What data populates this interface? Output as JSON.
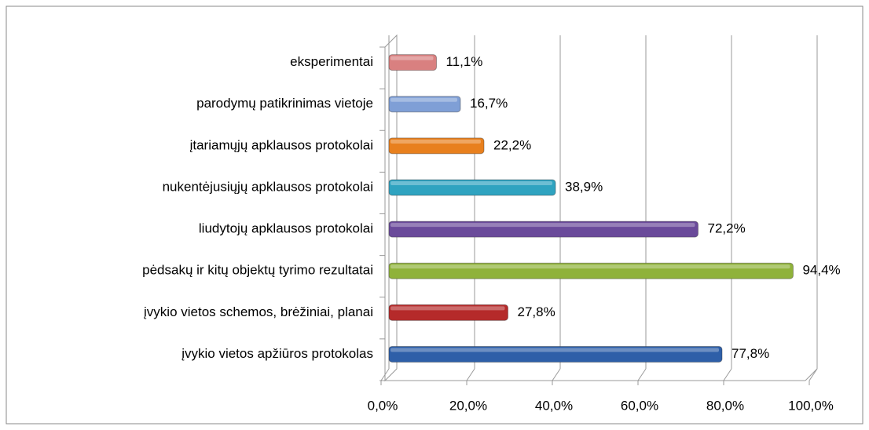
{
  "chart_data": {
    "type": "bar",
    "orientation": "horizontal",
    "categories": [
      "įvykio vietos apžiūros protokolas",
      "įvykio vietos schemos, brėžiniai, planai",
      "pėdsakų ir kitų objektų tyrimo rezultatai",
      "liudytojų apklausos protokolai",
      "nukentėjusiųjų apklausos protokolai",
      "įtariamųjų apklausos protokolai",
      "parodymų patikrinimas vietoje",
      "eksperimentai"
    ],
    "values": [
      77.8,
      27.8,
      94.4,
      72.2,
      38.9,
      22.2,
      16.7,
      11.1
    ],
    "value_labels": [
      "77,8%",
      "27,8%",
      "94,4%",
      "72,2%",
      "38,9%",
      "22,2%",
      "16,7%",
      "11,1%"
    ],
    "colors": [
      "#2e5fa8",
      "#b52a2a",
      "#8fb23a",
      "#6a4a9a",
      "#2fa3c0",
      "#e8801e",
      "#7f9fd6",
      "#d98080"
    ],
    "xlim": [
      0,
      100
    ],
    "xticks": [
      {
        "value": 0,
        "label": "0,0%"
      },
      {
        "value": 20,
        "label": "20,0%"
      },
      {
        "value": 40,
        "label": "40,0%"
      },
      {
        "value": 60,
        "label": "60,0%"
      },
      {
        "value": 80,
        "label": "80,0%"
      },
      {
        "value": 100,
        "label": "100,0%"
      }
    ],
    "grid": true
  }
}
